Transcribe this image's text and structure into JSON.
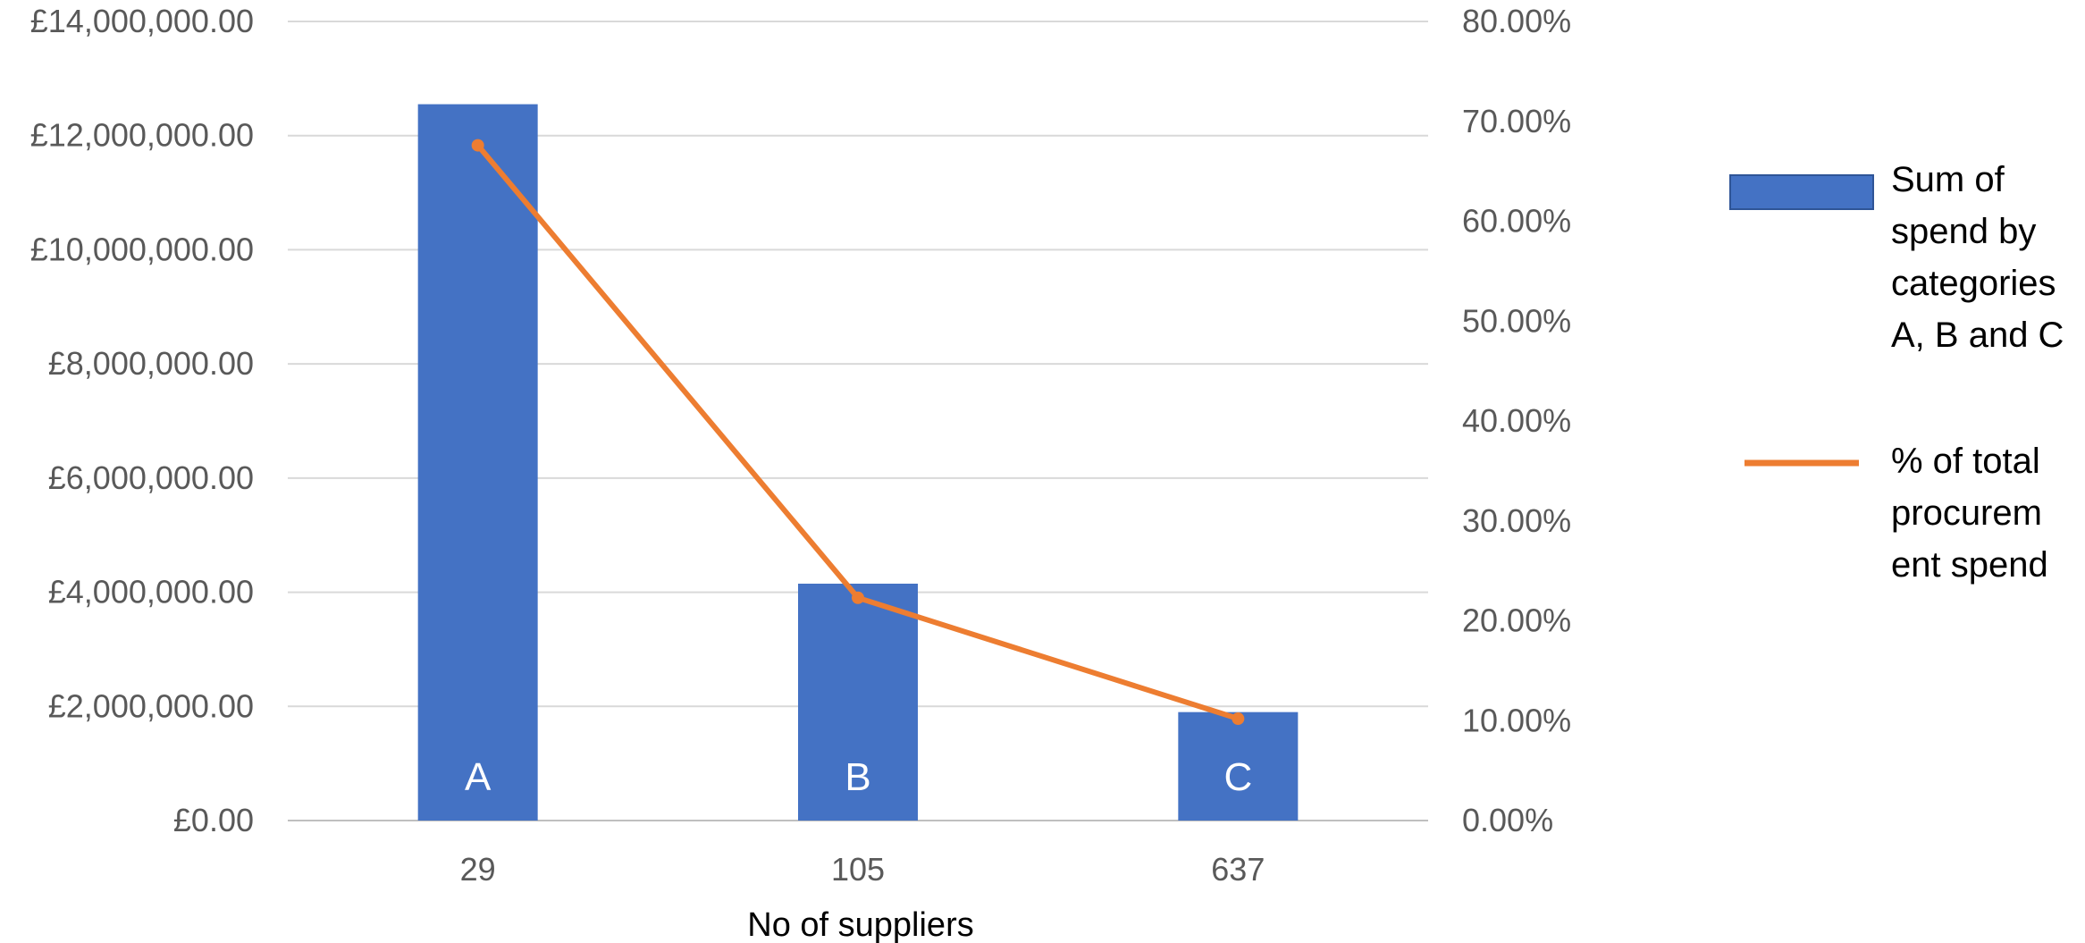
{
  "chart_data": {
    "type": "bar",
    "categories": [
      "29",
      "105",
      "637"
    ],
    "bar_labels": [
      "A",
      "B",
      "C"
    ],
    "xlabel": "No of suppliers",
    "ylabel": "",
    "y2label": "",
    "ylim": [
      0,
      14000000
    ],
    "y_ticks": [
      "£0.00",
      "£2,000,000.00",
      "£4,000,000.00",
      "£6,000,000.00",
      "£8,000,000.00",
      "£10,000,000.00",
      "£12,000,000.00",
      "£14,000,000.00"
    ],
    "y2lim": [
      0,
      0.8
    ],
    "y2_ticks": [
      "0.00%",
      "10.00%",
      "20.00%",
      "30.00%",
      "40.00%",
      "50.00%",
      "60.00%",
      "70.00%",
      "80.00%"
    ],
    "grid": true,
    "legend_position": "right",
    "series": [
      {
        "name": "Sum of spend by categories A, B and C",
        "kind": "bar",
        "axis": "left",
        "color": "#4472C4",
        "values": [
          12550000,
          4150000,
          1900000
        ]
      },
      {
        "name": "% of total procurement spend",
        "kind": "line",
        "axis": "right",
        "color": "#ED7D31",
        "values": [
          0.676,
          0.223,
          0.102
        ]
      }
    ],
    "legend": [
      {
        "lines": [
          "Sum of",
          "spend by",
          "categories",
          "A, B and C"
        ]
      },
      {
        "lines": [
          "% of total",
          "procurem",
          "ent spend"
        ]
      }
    ]
  }
}
